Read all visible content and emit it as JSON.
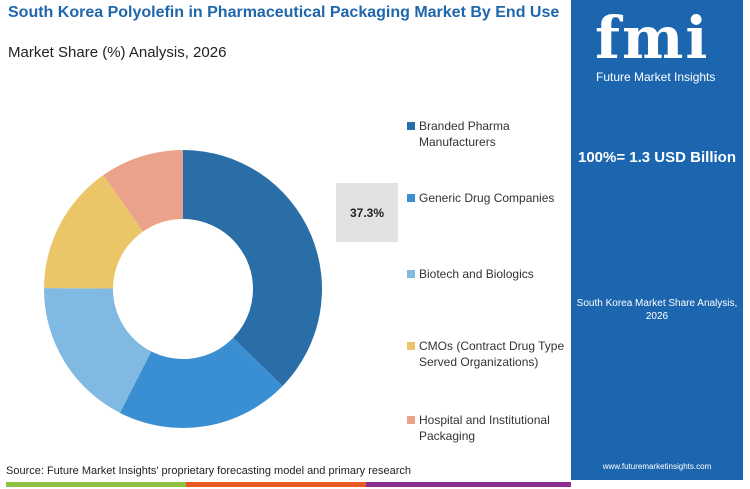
{
  "header": {
    "title": "South Korea Polyolefin in Pharmaceutical Packaging Market By End Use",
    "subtitle": "Market Share (%) Analysis, 2026"
  },
  "chart_data": {
    "type": "pie",
    "donut": true,
    "title": "South Korea Polyolefin in Pharmaceutical Packaging Market By End Use",
    "categories": [
      "Branded Pharma Manufacturers",
      "Generic Drug Companies",
      "Biotech and Biologics",
      "CMOs (Contract Drug Type Served Organizations)",
      "Hospital and Institutional Packaging"
    ],
    "values": [
      37.3,
      20.2,
      17.6,
      15.2,
      9.7
    ],
    "colors": [
      "#2a6ea8",
      "#3a8fd2",
      "#80b9e2",
      "#ebc669",
      "#eba28a"
    ],
    "data_labels": [
      "37.3%"
    ],
    "legend_placement": "right"
  },
  "panel": {
    "logo": "fmi",
    "logo_text": "Future Market Insights",
    "total": "100%= 1.3 USD Billion",
    "caption": "South Korea Market Share Analysis, 2026",
    "url": "www.futuremarketinsights.com"
  },
  "footer": {
    "source": "Source: Future Market Insights' proprietary forecasting model and primary research"
  }
}
